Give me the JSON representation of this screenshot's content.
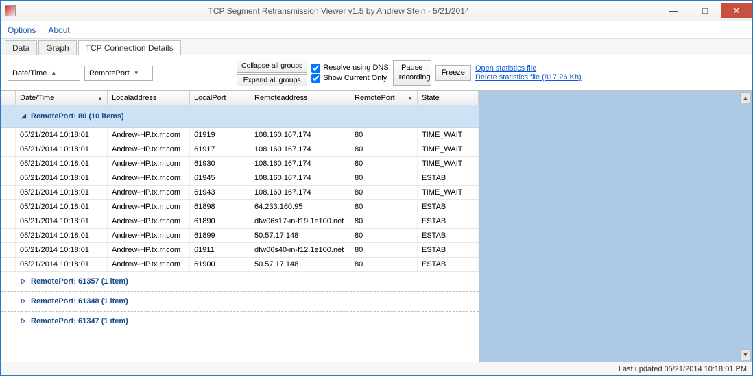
{
  "window": {
    "title": "TCP Segment Retransmission Viewer v1.5 by Andrew Stein - 5/21/2014"
  },
  "menu": {
    "options": "Options",
    "about": "About"
  },
  "tabs": {
    "data": "Data",
    "graph": "Graph",
    "tcp": "TCP Connection Details",
    "active": "tcp"
  },
  "toolbar": {
    "dd1": "Date/Time",
    "dd2": "RemotePort",
    "collapse": "Collapse all groups",
    "expand": "Expand all groups",
    "resolve": "Resolve using DNS",
    "current": "Show Current Only",
    "pause": "Pause\nrecording",
    "freeze": "Freeze"
  },
  "links": {
    "open": "Open statistics file",
    "delete": "Delete statistics file (817.26 Kb)"
  },
  "columns": {
    "dt": "Date/Time",
    "la": "Localaddress",
    "lp": "LocalPort",
    "ra": "Remoteaddress",
    "rp": "RemotePort",
    "st": "State"
  },
  "group_expanded": {
    "label": "RemotePort: 80 (10 items)"
  },
  "rows": [
    {
      "dt": "05/21/2014 10:18:01",
      "la": "Andrew-HP.tx.rr.com",
      "lp": "61919",
      "ra": "108.160.167.174",
      "rp": "80",
      "st": "TIME_WAIT"
    },
    {
      "dt": "05/21/2014 10:18:01",
      "la": "Andrew-HP.tx.rr.com",
      "lp": "61917",
      "ra": "108.160.167.174",
      "rp": "80",
      "st": "TIME_WAIT"
    },
    {
      "dt": "05/21/2014 10:18:01",
      "la": "Andrew-HP.tx.rr.com",
      "lp": "61930",
      "ra": "108.160.167.174",
      "rp": "80",
      "st": "TIME_WAIT"
    },
    {
      "dt": "05/21/2014 10:18:01",
      "la": "Andrew-HP.tx.rr.com",
      "lp": "61945",
      "ra": "108.160.167.174",
      "rp": "80",
      "st": "ESTAB"
    },
    {
      "dt": "05/21/2014 10:18:01",
      "la": "Andrew-HP.tx.rr.com",
      "lp": "61943",
      "ra": "108.160.167.174",
      "rp": "80",
      "st": "TIME_WAIT"
    },
    {
      "dt": "05/21/2014 10:18:01",
      "la": "Andrew-HP.tx.rr.com",
      "lp": "61898",
      "ra": "64.233.160.95",
      "rp": "80",
      "st": "ESTAB"
    },
    {
      "dt": "05/21/2014 10:18:01",
      "la": "Andrew-HP.tx.rr.com",
      "lp": "61890",
      "ra": "dfw06s17-in-f19.1e100.net",
      "rp": "80",
      "st": "ESTAB"
    },
    {
      "dt": "05/21/2014 10:18:01",
      "la": "Andrew-HP.tx.rr.com",
      "lp": "61899",
      "ra": "50.57.17.148",
      "rp": "80",
      "st": "ESTAB"
    },
    {
      "dt": "05/21/2014 10:18:01",
      "la": "Andrew-HP.tx.rr.com",
      "lp": "61911",
      "ra": "dfw06s40-in-f12.1e100.net",
      "rp": "80",
      "st": "ESTAB"
    },
    {
      "dt": "05/21/2014 10:18:01",
      "la": "Andrew-HP.tx.rr.com",
      "lp": "61900",
      "ra": "50.57.17.148",
      "rp": "80",
      "st": "ESTAB"
    }
  ],
  "groups_collapsed": [
    {
      "label": "RemotePort: 61357 (1 item)"
    },
    {
      "label": "RemotePort: 61348 (1 item)"
    },
    {
      "label": "RemotePort: 61347 (1 item)"
    }
  ],
  "status": "Last updated 05/21/2014 10:18:01 PM",
  "colors": {
    "group_bg": "#cde3f5",
    "group_text": "#1a4a8a",
    "side_bg": "#aec9e3",
    "link": "#0a5bd1",
    "close_btn": "#c94f3f"
  }
}
